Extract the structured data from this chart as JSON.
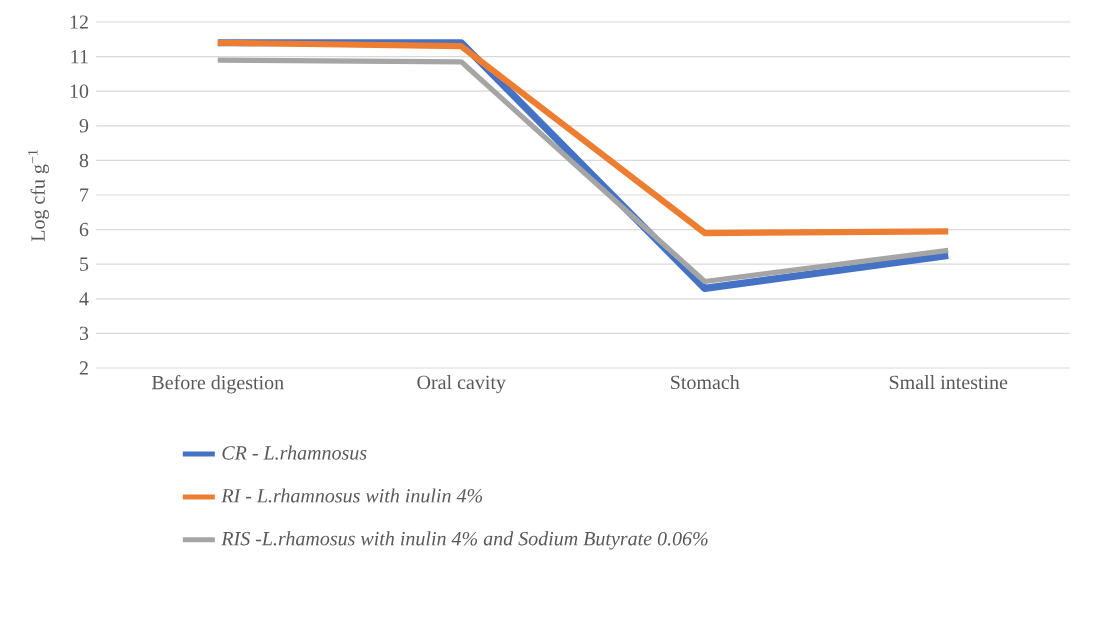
{
  "chart_data": {
    "type": "line",
    "ylabel": "Log cfu g$^{−1}$",
    "categories": [
      "Before digestion",
      "Oral cavity",
      "Stomach",
      "Small intestine"
    ],
    "series": [
      {
        "name": "CR - L.rhamnosus",
        "color": "#4472c4",
        "values": [
          11.4,
          11.4,
          4.3,
          5.25
        ]
      },
      {
        "name": "RI - L.rhamnosus with inulin 4%",
        "color": "#ed7d31",
        "values": [
          11.4,
          11.3,
          5.9,
          5.95
        ]
      },
      {
        "name": "RIS -L.rhamosus with inulin 4% and Sodium Butyrate 0.06%",
        "color": "#a5a5a5",
        "values": [
          10.9,
          10.85,
          4.5,
          5.4
        ]
      }
    ],
    "ylim": [
      2,
      12
    ],
    "yticks": [
      2,
      3,
      4,
      5,
      6,
      7,
      8,
      9,
      10,
      11,
      12
    ],
    "grid": "y",
    "legend": "bottom",
    "marker": "none",
    "line_style": "solid"
  }
}
